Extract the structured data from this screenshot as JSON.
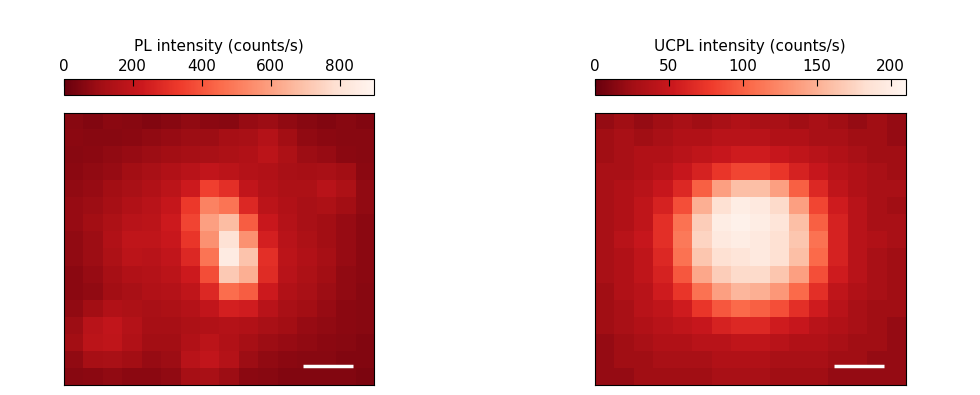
{
  "chart_data": [
    {
      "type": "heatmap",
      "colorbar_label": "PL intensity (counts/s)",
      "color": "Reds_r",
      "tick_labels": false,
      "colorbar_lim": [
        0,
        900
      ],
      "colorbar_ticks": [
        0,
        200,
        400,
        600,
        800
      ],
      "cells": [
        [
          60,
          50,
          70,
          60,
          50,
          60,
          80,
          70,
          60,
          90,
          100,
          80,
          60,
          50,
          60,
          50
        ],
        [
          70,
          60,
          60,
          70,
          80,
          90,
          100,
          100,
          120,
          130,
          160,
          110,
          80,
          70,
          60,
          60
        ],
        [
          60,
          70,
          80,
          90,
          100,
          110,
          120,
          130,
          140,
          150,
          180,
          140,
          100,
          90,
          70,
          60
        ],
        [
          70,
          80,
          90,
          110,
          130,
          150,
          170,
          200,
          180,
          160,
          150,
          130,
          120,
          130,
          110,
          70
        ],
        [
          80,
          90,
          110,
          130,
          150,
          180,
          230,
          350,
          300,
          200,
          160,
          140,
          140,
          170,
          140,
          80
        ],
        [
          90,
          100,
          120,
          150,
          170,
          210,
          330,
          520,
          480,
          280,
          180,
          150,
          130,
          140,
          110,
          80
        ],
        [
          90,
          110,
          140,
          170,
          180,
          230,
          360,
          600,
          680,
          420,
          220,
          160,
          130,
          110,
          90,
          70
        ],
        [
          80,
          100,
          150,
          190,
          190,
          220,
          320,
          560,
          800,
          560,
          250,
          170,
          140,
          110,
          90,
          70
        ],
        [
          80,
          100,
          140,
          180,
          170,
          200,
          280,
          480,
          850,
          700,
          300,
          180,
          150,
          120,
          90,
          70
        ],
        [
          70,
          90,
          120,
          150,
          160,
          180,
          230,
          380,
          720,
          640,
          290,
          170,
          140,
          110,
          80,
          70
        ],
        [
          70,
          80,
          110,
          130,
          150,
          160,
          190,
          280,
          460,
          420,
          230,
          150,
          130,
          100,
          80,
          60
        ],
        [
          80,
          110,
          150,
          140,
          130,
          140,
          160,
          200,
          250,
          240,
          170,
          130,
          110,
          90,
          70,
          60
        ],
        [
          100,
          170,
          200,
          160,
          120,
          120,
          140,
          150,
          160,
          150,
          130,
          110,
          90,
          80,
          70,
          60
        ],
        [
          110,
          180,
          190,
          150,
          110,
          110,
          150,
          180,
          150,
          120,
          100,
          90,
          80,
          70,
          60,
          50
        ],
        [
          80,
          120,
          130,
          110,
          90,
          100,
          170,
          200,
          160,
          100,
          80,
          70,
          60,
          60,
          50,
          50
        ],
        [
          60,
          70,
          80,
          70,
          70,
          80,
          120,
          130,
          100,
          70,
          60,
          50,
          50,
          50,
          50,
          40
        ]
      ]
    },
    {
      "type": "heatmap",
      "colorbar_label": "UCPL intensity (counts/s)",
      "color": "Reds_r",
      "tick_labels": false,
      "colorbar_lim": [
        0,
        210
      ],
      "colorbar_ticks": [
        0,
        50,
        100,
        150,
        200
      ],
      "cells": [
        [
          20,
          25,
          20,
          25,
          30,
          25,
          30,
          35,
          30,
          30,
          25,
          30,
          25,
          20,
          25,
          20
        ],
        [
          25,
          30,
          25,
          30,
          35,
          35,
          40,
          40,
          40,
          35,
          35,
          30,
          30,
          25,
          25,
          20
        ],
        [
          25,
          30,
          35,
          35,
          40,
          45,
          50,
          55,
          55,
          50,
          45,
          40,
          35,
          30,
          25,
          25
        ],
        [
          30,
          30,
          35,
          40,
          50,
          60,
          75,
          85,
          85,
          75,
          60,
          50,
          40,
          35,
          30,
          25
        ],
        [
          30,
          35,
          40,
          50,
          65,
          100,
          140,
          160,
          160,
          140,
          100,
          65,
          45,
          35,
          30,
          30
        ],
        [
          30,
          35,
          45,
          60,
          90,
          150,
          185,
          200,
          195,
          180,
          140,
          85,
          55,
          40,
          30,
          25
        ],
        [
          30,
          35,
          45,
          70,
          110,
          170,
          200,
          205,
          200,
          190,
          160,
          100,
          60,
          40,
          30,
          30
        ],
        [
          30,
          40,
          50,
          70,
          115,
          175,
          195,
          200,
          195,
          185,
          165,
          110,
          60,
          40,
          35,
          30
        ],
        [
          30,
          35,
          45,
          65,
          110,
          165,
          185,
          190,
          195,
          185,
          160,
          105,
          60,
          40,
          30,
          25
        ],
        [
          30,
          35,
          45,
          60,
          95,
          145,
          170,
          180,
          180,
          165,
          140,
          90,
          55,
          40,
          30,
          25
        ],
        [
          25,
          35,
          40,
          55,
          75,
          110,
          140,
          155,
          150,
          135,
          105,
          70,
          45,
          35,
          30,
          25
        ],
        [
          25,
          30,
          40,
          45,
          55,
          75,
          95,
          105,
          100,
          90,
          70,
          55,
          40,
          30,
          25,
          25
        ],
        [
          25,
          30,
          35,
          40,
          45,
          50,
          60,
          65,
          65,
          55,
          50,
          40,
          35,
          30,
          25,
          20
        ],
        [
          20,
          25,
          30,
          35,
          35,
          40,
          40,
          45,
          45,
          40,
          35,
          35,
          30,
          25,
          25,
          20
        ],
        [
          20,
          25,
          25,
          30,
          30,
          30,
          35,
          35,
          35,
          30,
          30,
          30,
          25,
          25,
          20,
          20
        ],
        [
          20,
          20,
          25,
          25,
          25,
          25,
          30,
          30,
          30,
          25,
          25,
          25,
          20,
          20,
          20,
          20
        ]
      ]
    }
  ]
}
